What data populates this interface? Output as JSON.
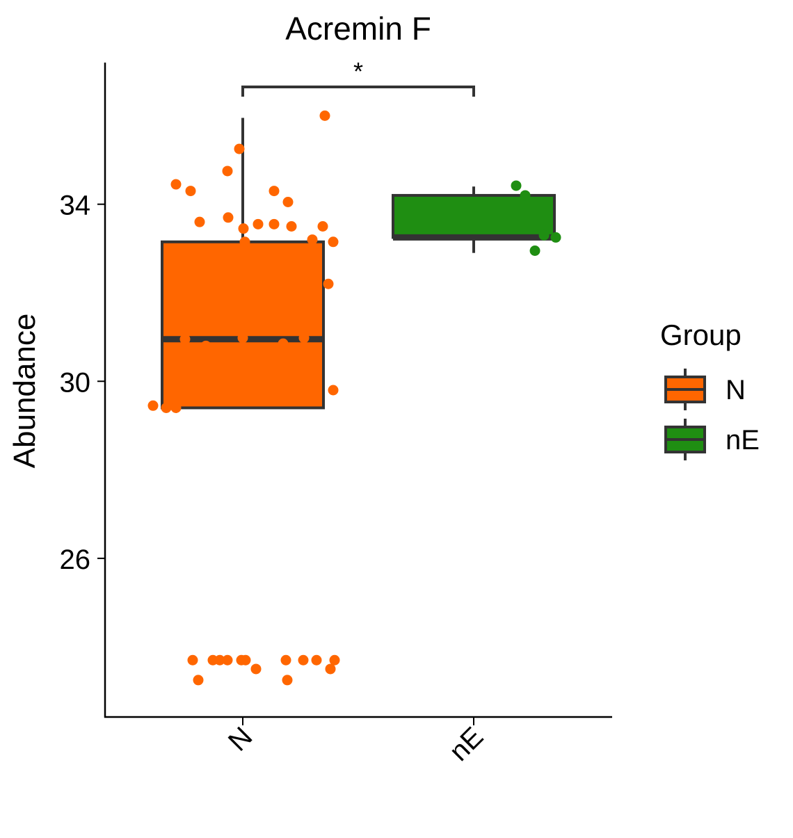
{
  "chart_data": {
    "type": "box",
    "title": "Acremin F",
    "xlabel": "",
    "ylabel": "Abundance",
    "categories": [
      "N",
      "nE"
    ],
    "y_ticks": [
      26,
      30,
      34
    ],
    "ylim": [
      22.4,
      37.2
    ],
    "grid": false,
    "legend": {
      "title": "Group",
      "placement": "right",
      "entries": [
        {
          "label": "N",
          "color": "#FF6600"
        },
        {
          "label": "nE",
          "color": "#1F8E12"
        }
      ]
    },
    "significance": {
      "from": "N",
      "to": "nE",
      "label": "*",
      "y": 36.65
    },
    "boxes": [
      {
        "group": "N",
        "color": "#FF6600",
        "whisker_low": 29.4,
        "q1": 29.4,
        "median": 30.95,
        "q3": 33.15,
        "whisker_high": 35.95
      },
      {
        "group": "nE",
        "color": "#1F8E12",
        "whisker_low": 32.9,
        "q1": 33.25,
        "median": 33.25,
        "q3": 34.2,
        "whisker_high": 34.4
      }
    ],
    "points": [
      {
        "group": "N",
        "values": [
          36.0,
          35.25,
          34.75,
          34.45,
          34.3,
          34.3,
          34.05,
          33.7,
          33.6,
          33.55,
          33.55,
          33.5,
          33.5,
          33.45,
          33.2,
          33.15,
          33.15,
          32.2,
          30.98,
          30.98,
          30.95,
          30.85,
          30.8,
          29.8,
          29.45,
          29.4,
          29.4,
          23.7,
          23.7,
          23.7,
          23.7,
          23.7,
          23.7,
          23.7,
          23.7,
          23.7,
          23.7,
          23.5,
          23.5,
          23.25,
          23.25
        ]
      },
      {
        "group": "nE",
        "values": [
          34.42,
          34.2,
          33.3,
          33.25,
          32.95
        ]
      }
    ]
  }
}
